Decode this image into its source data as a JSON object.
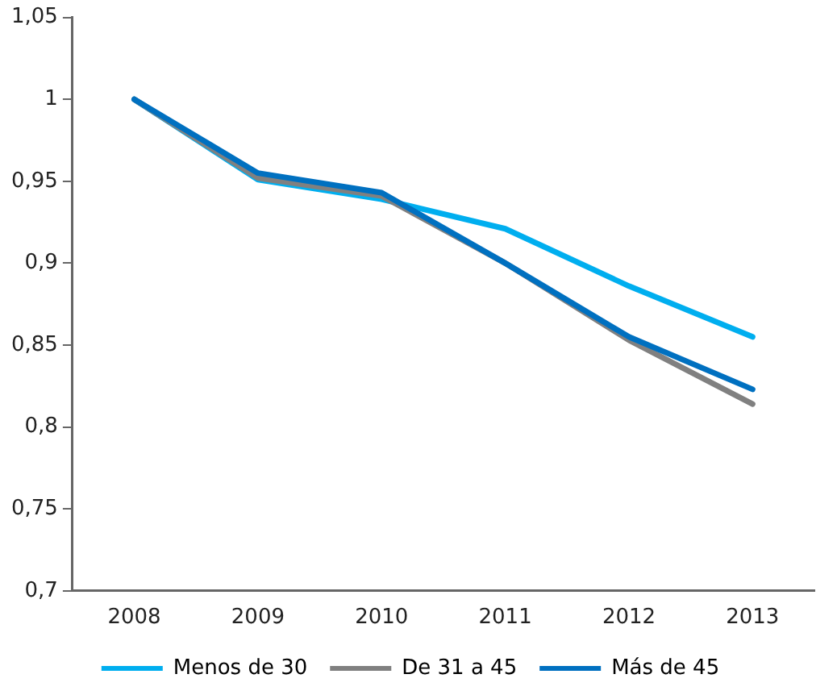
{
  "chart_data": {
    "type": "line",
    "categories": [
      "2008",
      "2009",
      "2010",
      "2011",
      "2012",
      "2013"
    ],
    "series": [
      {
        "name": "Menos de 30",
        "color": "#00aeef",
        "values": [
          1.0,
          0.951,
          0.939,
          0.921,
          0.886,
          0.855
        ]
      },
      {
        "name": "De 31 a 45",
        "color": "#808080",
        "values": [
          1.0,
          0.952,
          0.941,
          0.9,
          0.853,
          0.814
        ]
      },
      {
        "name": "Más de 45",
        "color": "#0070c0",
        "values": [
          1.0,
          0.955,
          0.943,
          0.9,
          0.855,
          0.823
        ]
      }
    ],
    "ylim": [
      0.7,
      1.05
    ],
    "yticks": [
      {
        "value": 0.7,
        "label": "0,7"
      },
      {
        "value": 0.75,
        "label": "0,75"
      },
      {
        "value": 0.8,
        "label": "0,8"
      },
      {
        "value": 0.85,
        "label": "0,85"
      },
      {
        "value": 0.9,
        "label": "0,9"
      },
      {
        "value": 0.95,
        "label": "0,95"
      },
      {
        "value": 1,
        "label": "1"
      },
      {
        "value": 1.05,
        "label": "1,05"
      }
    ],
    "grid": false,
    "legend": "bottom",
    "marker": "none",
    "line_style": "solid"
  }
}
